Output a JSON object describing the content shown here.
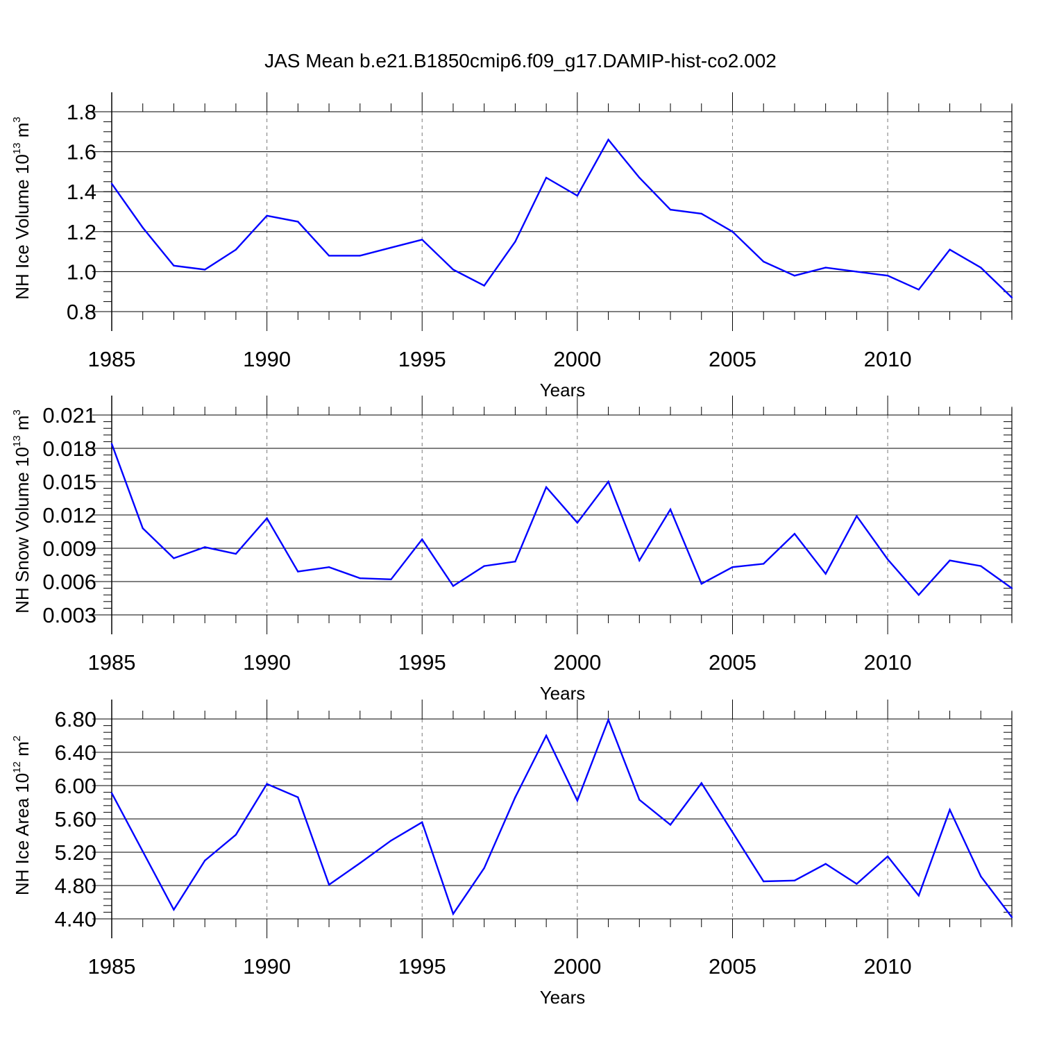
{
  "title": "JAS Mean b.e21.B1850cmip6.f09_g17.DAMIP-hist-co2.002",
  "colors": {
    "series": "#0000ff",
    "axis": "#000000",
    "grid": "#777777"
  },
  "chart_data": [
    {
      "type": "line",
      "xlabel": "Years",
      "ylabel": {
        "text": "NH Ice Volume 10",
        "sup": "13",
        "unit": " m",
        "unit_sup": "3"
      },
      "xlim": [
        1985,
        2014
      ],
      "ylim": [
        0.8,
        1.8
      ],
      "xticks": [
        1985,
        1990,
        1995,
        2000,
        2005,
        2010
      ],
      "xtick_labels": [
        "1985",
        "1990",
        "1995",
        "2000",
        "2005",
        "2010"
      ],
      "yticks": [
        0.8,
        1.0,
        1.2,
        1.4,
        1.6,
        1.8
      ],
      "ytick_labels": [
        "0.8",
        "1.0",
        "1.2",
        "1.4",
        "1.6",
        "1.8"
      ],
      "y_minor_step": 0.05,
      "grid": "x-dashed",
      "x": [
        1985,
        1986,
        1987,
        1988,
        1989,
        1990,
        1991,
        1992,
        1993,
        1994,
        1995,
        1996,
        1997,
        1998,
        1999,
        2000,
        2001,
        2002,
        2003,
        2004,
        2005,
        2006,
        2007,
        2008,
        2009,
        2010,
        2011,
        2012,
        2013,
        2014
      ],
      "values": [
        1.44,
        1.22,
        1.03,
        1.01,
        1.11,
        1.28,
        1.25,
        1.08,
        1.08,
        1.12,
        1.16,
        1.01,
        0.93,
        1.15,
        1.47,
        1.38,
        1.66,
        1.47,
        1.31,
        1.29,
        1.2,
        1.05,
        0.98,
        1.02,
        1.0,
        0.98,
        0.91,
        1.11,
        1.02,
        0.87
      ]
    },
    {
      "type": "line",
      "xlabel": "Years",
      "ylabel": {
        "text": "NH Snow Volume 10",
        "sup": "13",
        "unit": " m",
        "unit_sup": "3"
      },
      "xlim": [
        1985,
        2014
      ],
      "ylim": [
        0.003,
        0.021
      ],
      "xticks": [
        1985,
        1990,
        1995,
        2000,
        2005,
        2010
      ],
      "xtick_labels": [
        "1985",
        "1990",
        "1995",
        "2000",
        "2005",
        "2010"
      ],
      "yticks": [
        0.003,
        0.006,
        0.009,
        0.012,
        0.015,
        0.018,
        0.021
      ],
      "ytick_labels": [
        "0.003",
        "0.006",
        "0.009",
        "0.012",
        "0.015",
        "0.018",
        "0.021"
      ],
      "y_minor_step": 0.0006,
      "grid": "x-dashed",
      "x": [
        1985,
        1986,
        1987,
        1988,
        1989,
        1990,
        1991,
        1992,
        1993,
        1994,
        1995,
        1996,
        1997,
        1998,
        1999,
        2000,
        2001,
        2002,
        2003,
        2004,
        2005,
        2006,
        2007,
        2008,
        2009,
        2010,
        2011,
        2012,
        2013,
        2014
      ],
      "values": [
        0.0184,
        0.0108,
        0.0081,
        0.0091,
        0.0085,
        0.0117,
        0.0069,
        0.0073,
        0.0063,
        0.0062,
        0.0098,
        0.0056,
        0.0074,
        0.0078,
        0.0145,
        0.0113,
        0.015,
        0.0079,
        0.0125,
        0.0058,
        0.0073,
        0.0076,
        0.0103,
        0.0067,
        0.0119,
        0.008,
        0.0048,
        0.0079,
        0.0074,
        0.0054
      ]
    },
    {
      "type": "line",
      "xlabel": "Years",
      "ylabel": {
        "text": "NH Ice Area 10",
        "sup": "12",
        "unit": " m",
        "unit_sup": "2"
      },
      "xlim": [
        1985,
        2014
      ],
      "ylim": [
        4.4,
        6.8
      ],
      "xticks": [
        1985,
        1990,
        1995,
        2000,
        2005,
        2010
      ],
      "xtick_labels": [
        "1985",
        "1990",
        "1995",
        "2000",
        "2005",
        "2010"
      ],
      "yticks": [
        4.4,
        4.8,
        5.2,
        5.6,
        6.0,
        6.4,
        6.8
      ],
      "ytick_labels": [
        "4.40",
        "4.80",
        "5.20",
        "5.60",
        "6.00",
        "6.40",
        "6.80"
      ],
      "y_minor_step": 0.08,
      "grid": "x-dashed",
      "x": [
        1985,
        1986,
        1987,
        1988,
        1989,
        1990,
        1991,
        1992,
        1993,
        1994,
        1995,
        1996,
        1997,
        1998,
        1999,
        2000,
        2001,
        2002,
        2003,
        2004,
        2005,
        2006,
        2007,
        2008,
        2009,
        2010,
        2011,
        2012,
        2013,
        2014
      ],
      "values": [
        5.91,
        5.21,
        4.51,
        5.1,
        5.41,
        6.02,
        5.86,
        4.81,
        5.07,
        5.34,
        5.56,
        4.46,
        5.01,
        5.86,
        6.6,
        5.82,
        6.79,
        5.83,
        5.53,
        6.03,
        5.44,
        4.85,
        4.86,
        5.06,
        4.82,
        5.15,
        4.68,
        5.71,
        4.91,
        4.42
      ]
    }
  ]
}
